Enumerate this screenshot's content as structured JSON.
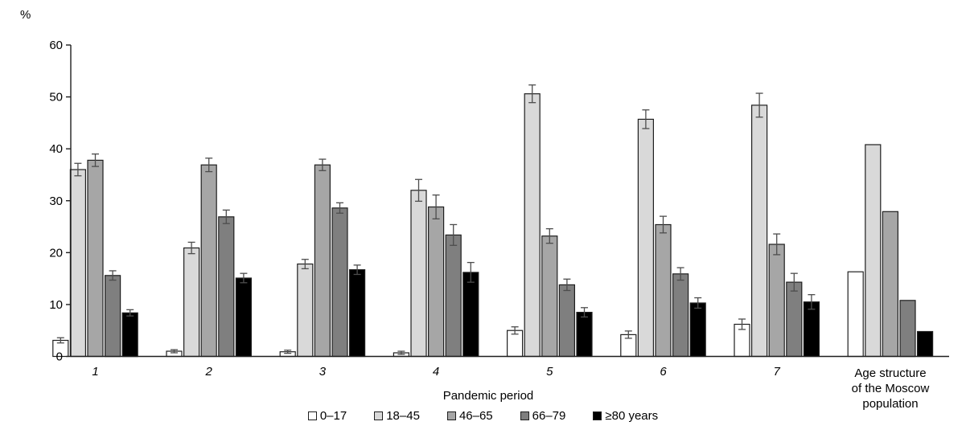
{
  "chart_data": {
    "type": "bar",
    "title": "",
    "ylabel": "%",
    "xlabel": "Pandemic period",
    "ylim": [
      0,
      60
    ],
    "yticks": [
      0,
      10,
      20,
      30,
      40,
      50,
      60
    ],
    "grid": false,
    "legend_position": "bottom",
    "error_bars": true,
    "categories": [
      "1",
      "2",
      "3",
      "4",
      "5",
      "6",
      "7",
      "Age structure of the Moscow population"
    ],
    "last_category_lines": [
      "Age structure",
      "of the Moscow",
      "population"
    ],
    "series": [
      {
        "name": "0–17",
        "color": "#ffffff",
        "values": [
          3.1,
          1.0,
          0.9,
          0.7,
          5.0,
          4.2,
          6.2,
          16.3
        ],
        "errors": [
          0.5,
          0.3,
          0.3,
          0.3,
          0.7,
          0.7,
          1.0,
          null
        ]
      },
      {
        "name": "18–45",
        "color": "#d9d9d9",
        "values": [
          36.0,
          20.9,
          17.8,
          32.0,
          50.6,
          45.7,
          48.4,
          40.8
        ],
        "errors": [
          1.2,
          1.1,
          0.9,
          2.1,
          1.7,
          1.8,
          2.3,
          null
        ]
      },
      {
        "name": "46–65",
        "color": "#a6a6a6",
        "values": [
          37.8,
          36.9,
          36.9,
          28.8,
          23.2,
          25.4,
          21.6,
          27.9
        ],
        "errors": [
          1.2,
          1.3,
          1.1,
          2.3,
          1.4,
          1.6,
          2.0,
          null
        ]
      },
      {
        "name": "66–79",
        "color": "#7f7f7f",
        "values": [
          15.6,
          26.9,
          28.6,
          23.4,
          13.8,
          15.9,
          14.3,
          10.8
        ],
        "errors": [
          0.9,
          1.3,
          1.0,
          2.0,
          1.1,
          1.2,
          1.7,
          null
        ]
      },
      {
        "name": "≥80 years",
        "color": "#000000",
        "values": [
          8.4,
          15.1,
          16.7,
          16.2,
          8.5,
          10.3,
          10.5,
          4.8
        ],
        "errors": [
          0.6,
          0.9,
          0.9,
          1.9,
          0.9,
          1.0,
          1.4,
          null
        ]
      }
    ],
    "styles": {
      "bar_border": "#1f1f1f",
      "error_bar_color": "#4d4d4d",
      "axis_color": "#1f1f1f",
      "text_color": "#000000"
    }
  }
}
